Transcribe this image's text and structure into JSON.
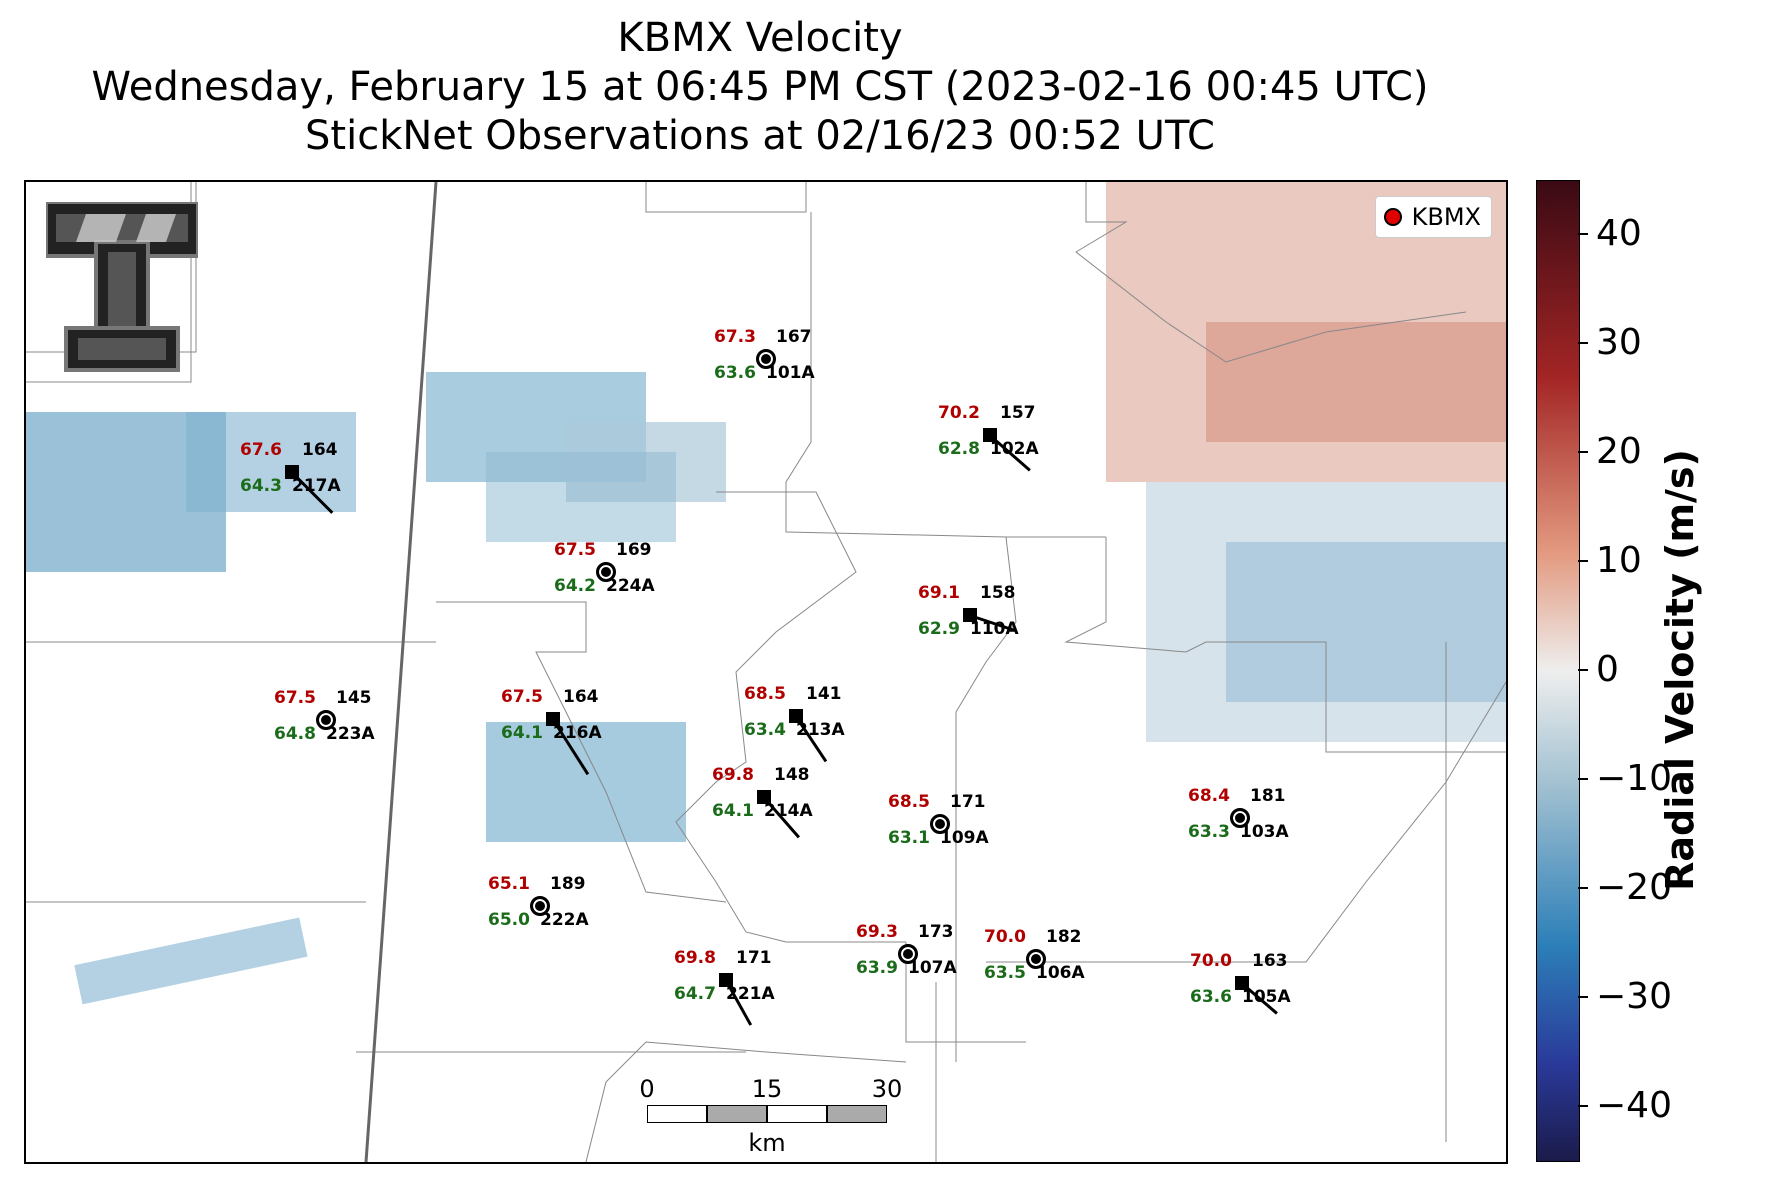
{
  "title": {
    "line1": "KBMX Velocity",
    "line2": "Wednesday, February 15 at 06:45 PM CST (2023-02-16 00:45 UTC)",
    "line3": "StickNet Observations at 02/16/23 00:52 UTC"
  },
  "legend": {
    "label": "KBMX",
    "marker_color": "#e00000"
  },
  "scalebar": {
    "ticks": [
      "0",
      "15",
      "30"
    ],
    "unit": "km"
  },
  "colorbar": {
    "title": "Radial Velocity (m/s)",
    "ticks": [
      "40",
      "30",
      "20",
      "10",
      "0",
      "−10",
      "−20",
      "−30",
      "−40"
    ],
    "range": [
      -45,
      45
    ]
  },
  "colors": {
    "temperature": "#b00000",
    "dewpoint": "#1a6b1a"
  },
  "stations": [
    {
      "id": "101A",
      "temp": "67.3",
      "dew": "63.6",
      "pres": "167",
      "marker": "circle"
    },
    {
      "id": "102A",
      "temp": "70.2",
      "dew": "62.8",
      "pres": "157",
      "marker": "square"
    },
    {
      "id": "217A",
      "temp": "67.6",
      "dew": "64.3",
      "pres": "164",
      "marker": "square"
    },
    {
      "id": "224A",
      "temp": "67.5",
      "dew": "64.2",
      "pres": "169",
      "marker": "circle"
    },
    {
      "id": "110A",
      "temp": "69.1",
      "dew": "62.9",
      "pres": "158",
      "marker": "square"
    },
    {
      "id": "223A",
      "temp": "67.5",
      "dew": "64.8",
      "pres": "145",
      "marker": "circle"
    },
    {
      "id": "216A",
      "temp": "67.5",
      "dew": "64.1",
      "pres": "164",
      "marker": "square"
    },
    {
      "id": "213A",
      "temp": "68.5",
      "dew": "63.4",
      "pres": "141",
      "marker": "square"
    },
    {
      "id": "214A",
      "temp": "69.8",
      "dew": "64.1",
      "pres": "148",
      "marker": "square"
    },
    {
      "id": "109A",
      "temp": "68.5",
      "dew": "63.1",
      "pres": "171",
      "marker": "circle"
    },
    {
      "id": "103A",
      "temp": "68.4",
      "dew": "63.3",
      "pres": "181",
      "marker": "circle"
    },
    {
      "id": "222A",
      "temp": "65.1",
      "dew": "65.0",
      "pres": "189",
      "marker": "circle"
    },
    {
      "id": "107A",
      "temp": "69.3",
      "dew": "63.9",
      "pres": "173",
      "marker": "circle"
    },
    {
      "id": "106A",
      "temp": "70.0",
      "dew": "63.5",
      "pres": "182",
      "marker": "circle"
    },
    {
      "id": "221A",
      "temp": "69.8",
      "dew": "64.7",
      "pres": "171",
      "marker": "square"
    },
    {
      "id": "105A",
      "temp": "70.0",
      "dew": "63.6",
      "pres": "163",
      "marker": "square"
    }
  ]
}
